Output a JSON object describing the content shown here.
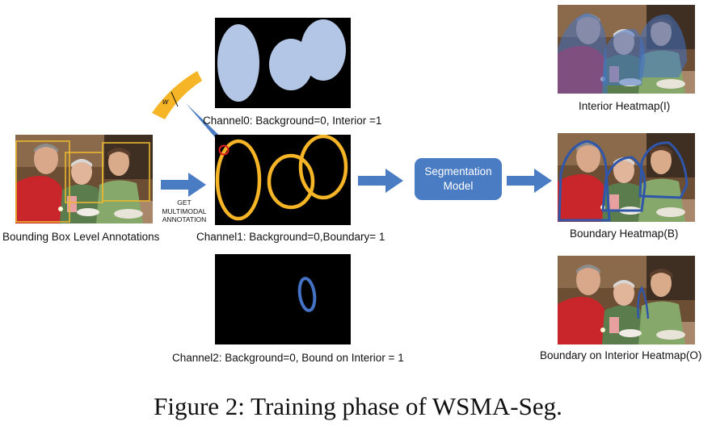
{
  "figure_caption": "Figure 2: Training phase of WSMA-Seg.",
  "input": {
    "label": "Bounding Box Level Annotations"
  },
  "step_arrow": {
    "line1": "GET",
    "line2": "MULTIMODAL",
    "line3": "ANNOTATION"
  },
  "channels": [
    {
      "label": "Channel0: Background=0, Interior =1"
    },
    {
      "label": "Channel1: Background=0,Boundary= 1"
    },
    {
      "label": "Channel2: Background=0, Bound on Interior = 1"
    }
  ],
  "zoom_callout": {
    "label": "w"
  },
  "model": {
    "line1": "Segmentation",
    "line2": "Model"
  },
  "outputs": [
    {
      "label": "Interior Heatmap(I)"
    },
    {
      "label": "Boundary Heatmap(B)"
    },
    {
      "label": "Boundary on Interior Heatmap(O)"
    }
  ],
  "colors": {
    "interior_fill": "#b3c6e6",
    "boundary_stroke": "#f5b526",
    "bound_on_interior": "#4472c4",
    "arrow": "#4a7cc4",
    "bbox": "#e8b830",
    "highlight_circle": "#e02020"
  }
}
